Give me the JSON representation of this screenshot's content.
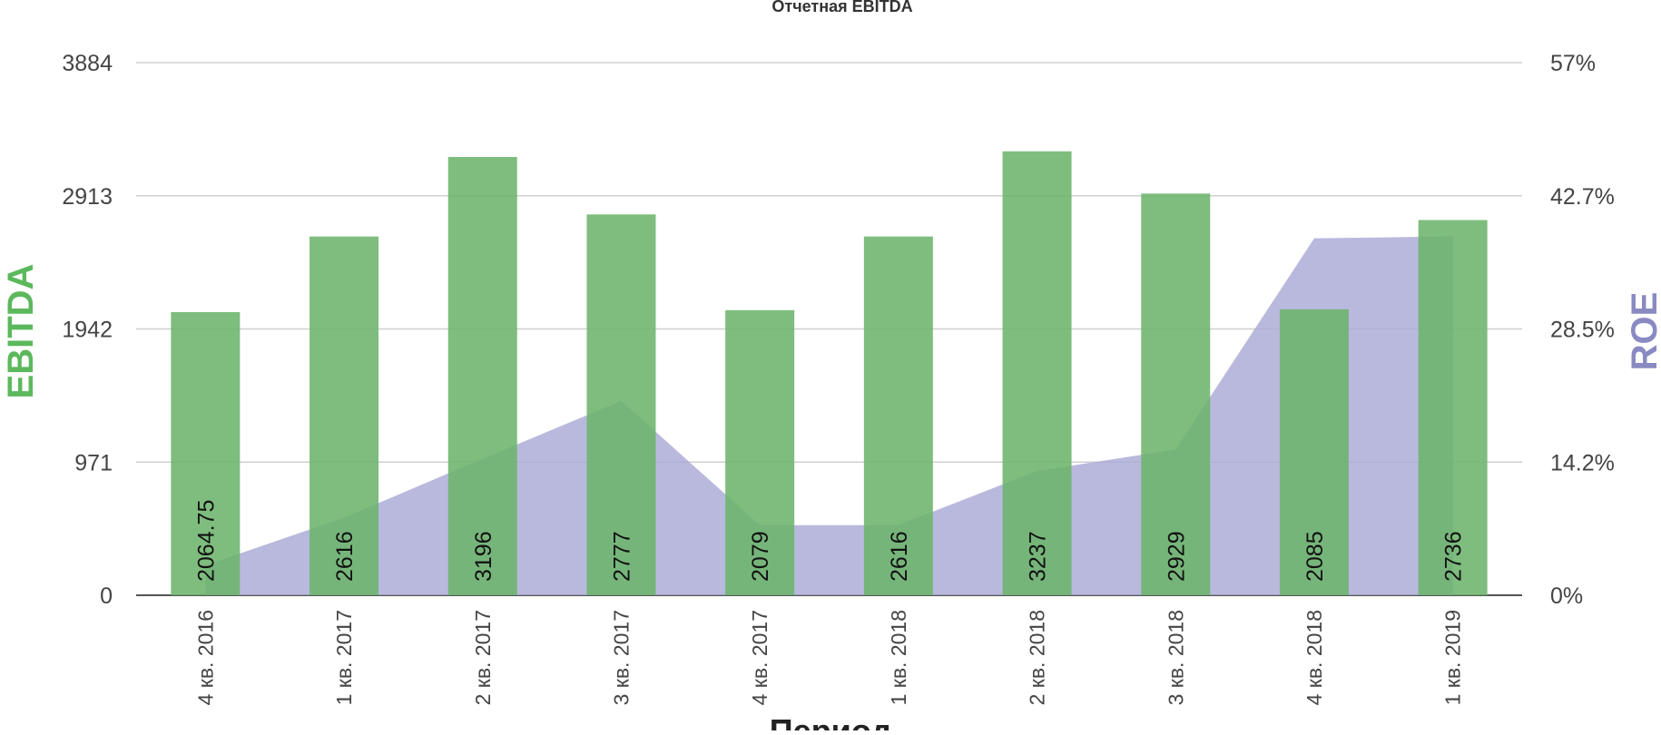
{
  "chart_data": {
    "type": "bar",
    "title": "Отчетная EBITDA",
    "xlabel": "Период",
    "ylabel_left": "EBITDA",
    "ylabel_right": "ROE",
    "categories": [
      "4 кв. 2016",
      "1 кв. 2017",
      "2 кв. 2017",
      "3 кв. 2017",
      "4 кв. 2017",
      "1 кв. 2018",
      "2 кв. 2018",
      "3 кв. 2018",
      "4 кв. 2018",
      "1 кв. 2019"
    ],
    "series": [
      {
        "name": "EBITDA",
        "type": "bar",
        "axis": "left",
        "values": [
          2064.75,
          2616,
          3196,
          2777,
          2079,
          2616,
          3237,
          2929,
          2085,
          2736
        ],
        "data_labels": [
          "2064.75",
          "2616",
          "3196",
          "2777",
          "2079",
          "2616",
          "3237",
          "2929",
          "2085",
          "2736"
        ]
      },
      {
        "name": "ROE",
        "type": "area",
        "axis": "right",
        "values": [
          3.2,
          8.3,
          14.6,
          20.8,
          7.5,
          7.5,
          13.3,
          15.6,
          38.2,
          38.4
        ]
      }
    ],
    "y_left": {
      "min": 0,
      "max": 3884,
      "ticks": [
        "0",
        "971",
        "1942",
        "2913",
        "3884"
      ],
      "tick_values": [
        0,
        971,
        1942,
        2913,
        3884
      ]
    },
    "y_right": {
      "min": 0,
      "max": 57,
      "ticks": [
        "0%",
        "14.2%",
        "28.5%",
        "42.7%",
        "57%"
      ],
      "tick_values": [
        0,
        14.25,
        28.5,
        42.75,
        57
      ]
    },
    "grid": true,
    "legend": "none",
    "colors": {
      "bar": "#6cb46c",
      "area": "#a9a9d6",
      "left_axis_title": "#5cb85c",
      "right_axis_title": "#8a8ac2",
      "grid": "#d0d0d0",
      "baseline": "#555555"
    }
  }
}
